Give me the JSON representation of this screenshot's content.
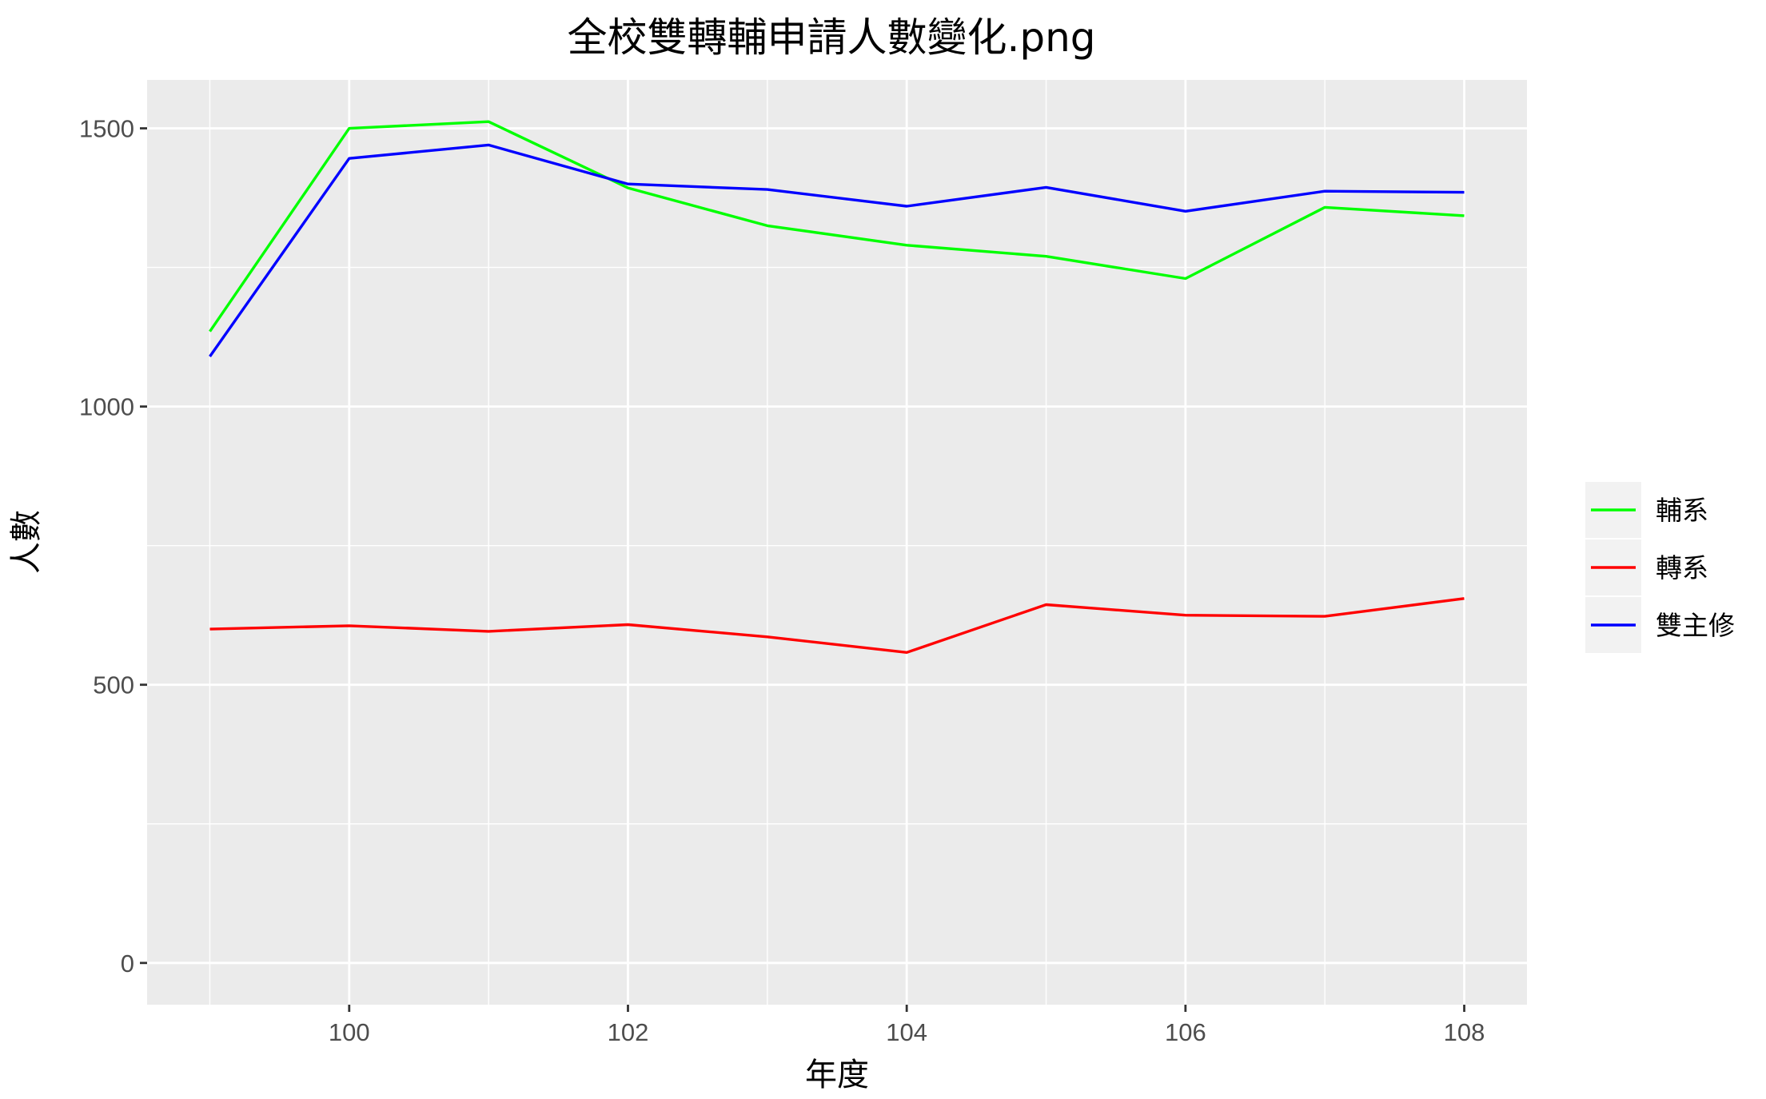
{
  "chart_data": {
    "type": "line",
    "title": "全校雙轉輔申請人數變化.png",
    "xlabel": "年度",
    "ylabel": "人數",
    "x": [
      99,
      100,
      101,
      102,
      103,
      104,
      105,
      106,
      107,
      108
    ],
    "x_ticks": [
      100,
      102,
      104,
      106,
      108
    ],
    "x_tick_labels": [
      "100",
      "102",
      "104",
      "106",
      "108"
    ],
    "y_ticks": [
      0,
      500,
      1000,
      1500
    ],
    "y_tick_labels": [
      "0",
      "500",
      "1000",
      "1500"
    ],
    "xlim": [
      98.55,
      108.45
    ],
    "ylim": [
      -75,
      1587
    ],
    "grid": true,
    "legend_position": "right",
    "series": [
      {
        "name": "輔系",
        "color": "#00ff00",
        "values": [
          1135,
          1500,
          1512,
          1393,
          1325,
          1290,
          1270,
          1230,
          1358,
          1343
        ]
      },
      {
        "name": "轉系",
        "color": "#ff0000",
        "values": [
          600,
          606,
          596,
          608,
          586,
          558,
          644,
          625,
          623,
          655
        ]
      },
      {
        "name": "雙主修",
        "color": "#0000ff",
        "values": [
          1090,
          1446,
          1470,
          1400,
          1390,
          1360,
          1394,
          1351,
          1387,
          1385
        ]
      }
    ]
  }
}
